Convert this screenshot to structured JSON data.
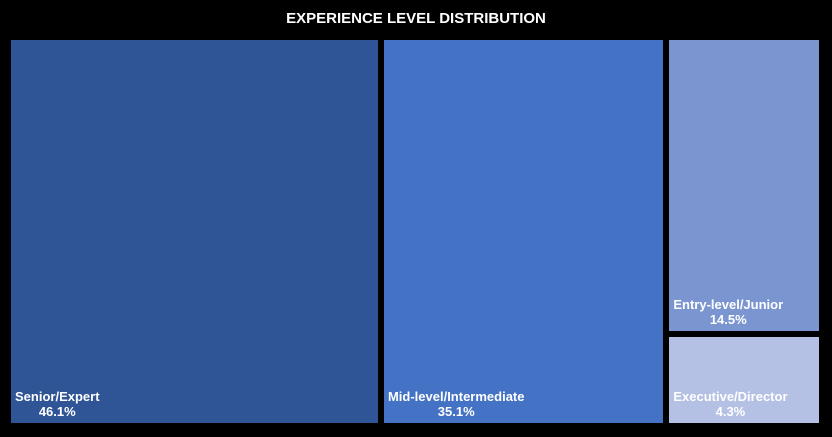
{
  "chart_data": {
    "type": "treemap",
    "title": "EXPERIENCE LEVEL DISTRIBUTION",
    "items": [
      {
        "name": "Senior/Expert",
        "label": "46.1%",
        "value": 46.1,
        "color": "#2f5597"
      },
      {
        "name": "Mid-level/Intermediate",
        "label": "35.1%",
        "value": 35.1,
        "color": "#4472c4"
      },
      {
        "name": "Entry-level/Junior",
        "label": "14.5%",
        "value": 14.5,
        "color": "#7b95d1"
      },
      {
        "name": "Executive/Director",
        "label": "4.3%",
        "value": 4.3,
        "color": "#b4c0e4"
      }
    ],
    "background": "#000000",
    "text_color": "#ffffff"
  }
}
